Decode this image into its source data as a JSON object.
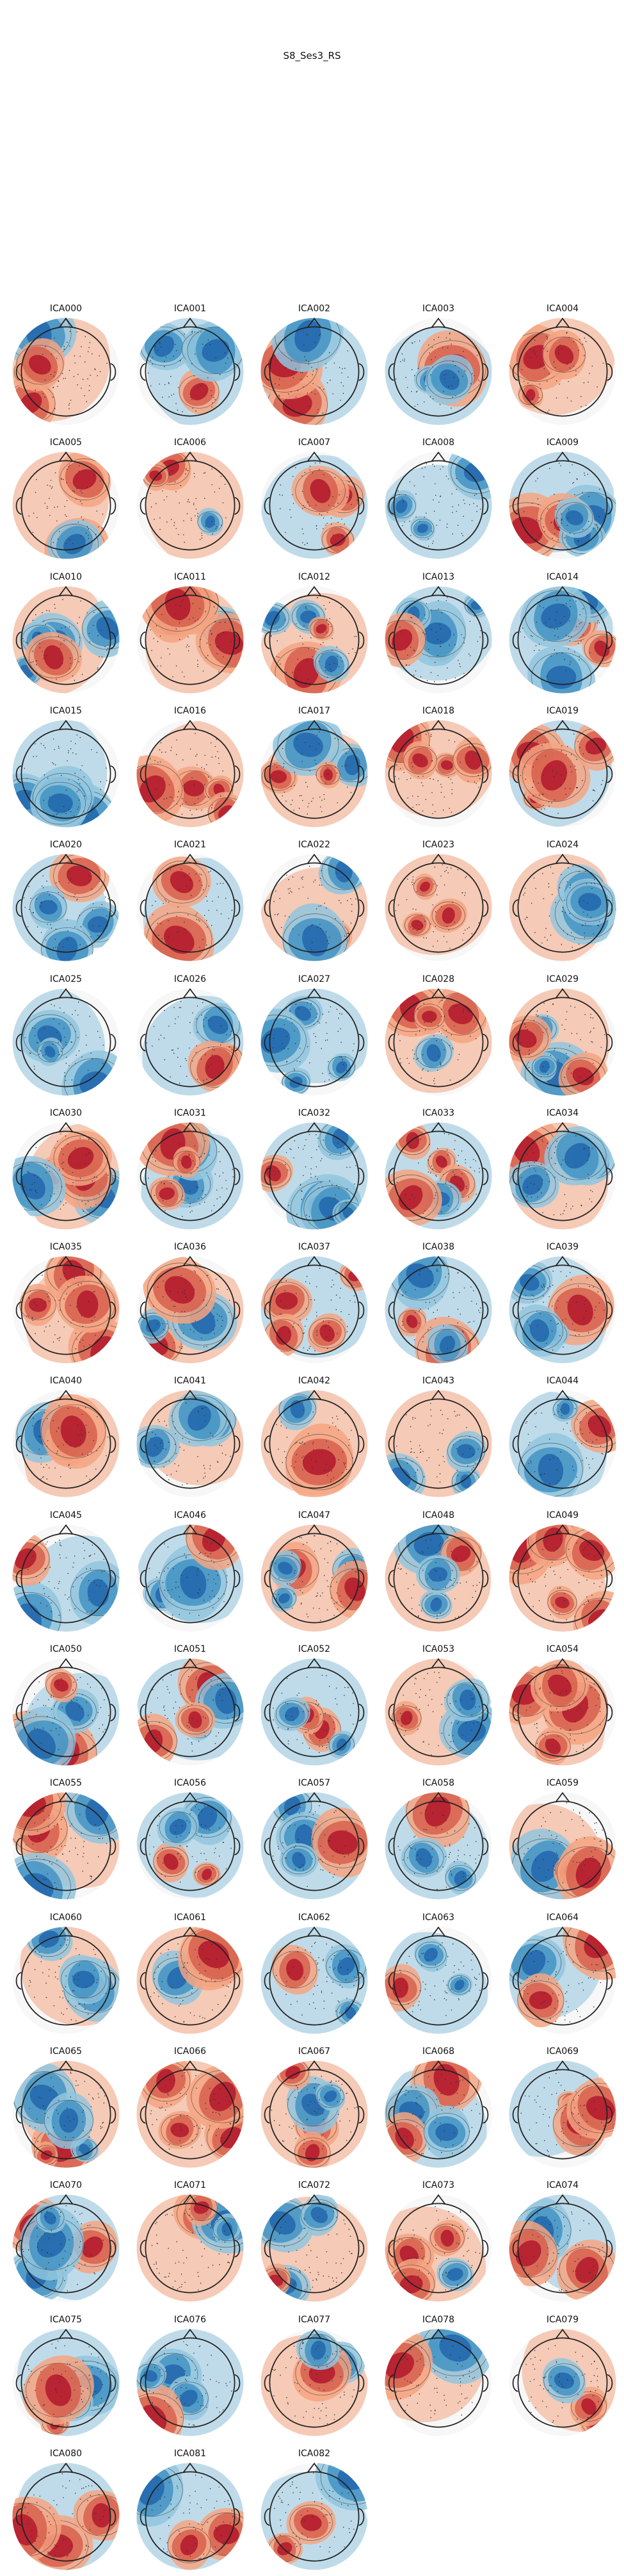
{
  "figure": {
    "title": "S8_Ses3_RS"
  },
  "palette": {
    "red_strong": "#b2182b",
    "red": "#d6604d",
    "red_light": "#f4a582",
    "white": "#f7f7f7",
    "blue_light": "#92c5de",
    "blue": "#4393c3",
    "blue_strong": "#2166ac",
    "outline": "#222222"
  },
  "components": [
    "ICA000",
    "ICA001",
    "ICA002",
    "ICA003",
    "ICA004",
    "ICA005",
    "ICA006",
    "ICA007",
    "ICA008",
    "ICA009",
    "ICA010",
    "ICA011",
    "ICA012",
    "ICA013",
    "ICA014",
    "ICA015",
    "ICA016",
    "ICA017",
    "ICA018",
    "ICA019",
    "ICA020",
    "ICA021",
    "ICA022",
    "ICA023",
    "ICA024",
    "ICA025",
    "ICA026",
    "ICA027",
    "ICA028",
    "ICA029",
    "ICA030",
    "ICA031",
    "ICA032",
    "ICA033",
    "ICA034",
    "ICA035",
    "ICA036",
    "ICA037",
    "ICA038",
    "ICA039",
    "ICA040",
    "ICA041",
    "ICA042",
    "ICA043",
    "ICA044",
    "ICA045",
    "ICA046",
    "ICA047",
    "ICA048",
    "ICA049",
    "ICA050",
    "ICA051",
    "ICA052",
    "ICA053",
    "ICA054",
    "ICA055",
    "ICA056",
    "ICA057",
    "ICA058",
    "ICA059",
    "ICA060",
    "ICA061",
    "ICA062",
    "ICA063",
    "ICA064",
    "ICA065",
    "ICA066",
    "ICA067",
    "ICA068",
    "ICA069",
    "ICA070",
    "ICA071",
    "ICA072",
    "ICA073",
    "ICA074",
    "ICA075",
    "ICA076",
    "ICA077",
    "ICA078",
    "ICA079",
    "ICA080",
    "ICA081",
    "ICA082"
  ]
}
